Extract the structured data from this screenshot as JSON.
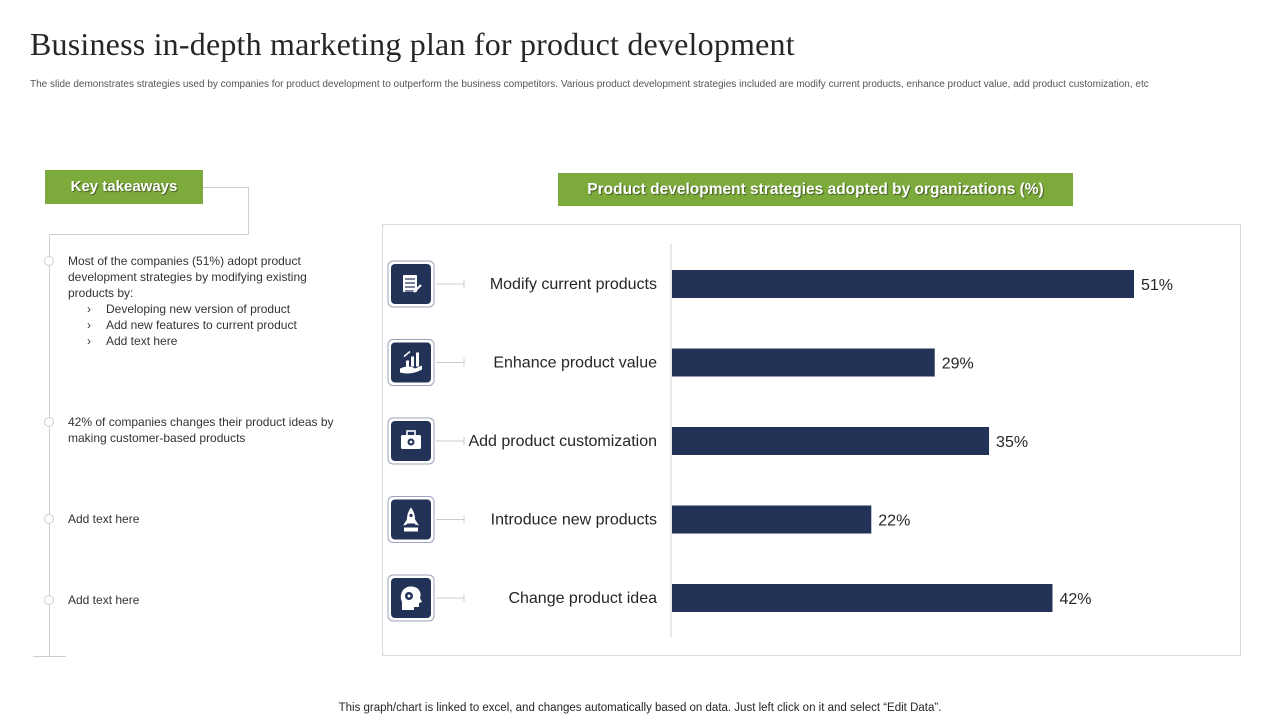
{
  "title": "Business in-depth marketing plan for product development",
  "subtitle": "The slide demonstrates strategies used by companies for product development to outperform the business competitors. Various product development strategies included are modify current products, enhance product value, add product customization, etc",
  "key_takeaways": {
    "label": "Key takeaways",
    "items": [
      {
        "text": "Most of the companies (51%) adopt product development strategies by modifying existing products by:",
        "bullets": [
          "Developing new version of product",
          "Add new features to current product",
          "Add text here"
        ]
      },
      {
        "text": "42% of companies changes their product ideas by making customer-based products"
      },
      {
        "text": "Add text here"
      },
      {
        "text": "Add text here"
      }
    ]
  },
  "chart_heading": "Product development strategies adopted by organizations (%)",
  "colors": {
    "accent_green": "#7cab3c",
    "bar_navy": "#233257",
    "icon_navy": "#233257"
  },
  "chart_data": {
    "type": "bar",
    "orientation": "horizontal",
    "title": "Product development strategies adopted by organizations (%)",
    "categories": [
      "Modify current products",
      "Enhance product value",
      "Add product customization",
      "Introduce new products",
      "Change product idea"
    ],
    "values": [
      51,
      29,
      35,
      22,
      42
    ],
    "value_labels": [
      "51%",
      "29%",
      "35%",
      "22%",
      "42%"
    ],
    "icons": [
      "document-edit-icon",
      "hand-growth-icon",
      "toolbox-gear-icon",
      "rocket-icon",
      "head-gears-icon"
    ],
    "xlabel": "",
    "ylabel": "",
    "xlim": [
      0,
      100
    ],
    "grid": false
  },
  "footer": "This graph/chart is linked to excel, and changes automatically based on data. Just left click on it and select “Edit Data”."
}
